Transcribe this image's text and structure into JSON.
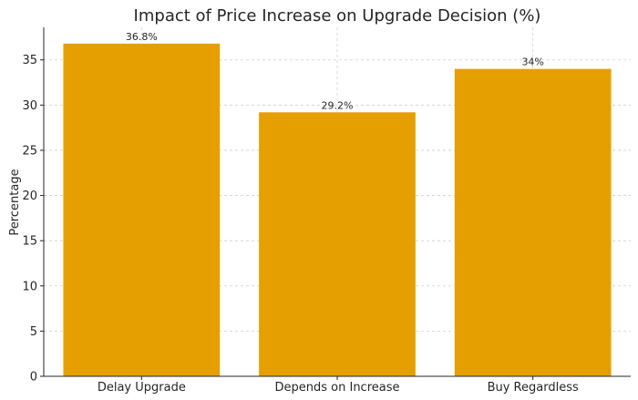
{
  "chart_data": {
    "type": "bar",
    "title": "Impact of Price Increase on Upgrade Decision (%)",
    "xlabel": "",
    "ylabel": "Percentage",
    "categories": [
      "Delay Upgrade",
      "Depends on Increase",
      "Buy Regardless"
    ],
    "values": [
      36.8,
      29.2,
      34
    ],
    "data_labels": [
      "36.8%",
      "29.2%",
      "34%"
    ],
    "ylim": [
      0,
      38.6
    ],
    "yticks": [
      0,
      5,
      10,
      15,
      20,
      25,
      30,
      35
    ],
    "grid": true,
    "bar_color": "#E69F00"
  }
}
